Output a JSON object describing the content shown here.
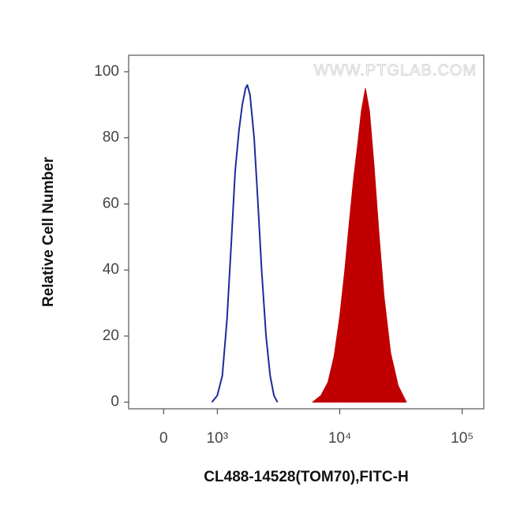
{
  "chart_data": {
    "type": "histogram-overlay",
    "watermark": "WWW.PTGLAB.COM",
    "x_label": "CL488-14528(TOM70),FITC-H",
    "y_label": "Relative Cell Number",
    "xscale": "biexponential",
    "xlim": [
      -650,
      150000
    ],
    "xticks": [
      0,
      {
        "value": 1000,
        "label": "10³"
      },
      {
        "value": 10000,
        "label": "10⁴"
      },
      {
        "value": 100000,
        "label": "10⁵"
      }
    ],
    "ylim": [
      -2,
      105
    ],
    "yticks": [
      0,
      20,
      40,
      60,
      80,
      100
    ],
    "series": [
      {
        "color": "#1f2a9c",
        "fill": false,
        "x": [
          900,
          1000,
          1100,
          1200,
          1300,
          1400,
          1500,
          1600,
          1700,
          1760,
          1850,
          2000,
          2150,
          2300,
          2500,
          2700,
          2900,
          3100
        ],
        "values": [
          0,
          2,
          8,
          25,
          48,
          70,
          82,
          90,
          95,
          96,
          93,
          80,
          60,
          40,
          20,
          8,
          2,
          0
        ]
      },
      {
        "color": "#c00000",
        "fill": true,
        "x": [
          6000,
          7000,
          8000,
          9000,
          10000,
          11000,
          12000,
          13000,
          14000,
          15000,
          16200,
          17500,
          19000,
          21000,
          23000,
          26000,
          30000,
          35000
        ],
        "values": [
          0,
          2,
          6,
          14,
          26,
          40,
          55,
          68,
          78,
          88,
          95,
          88,
          72,
          50,
          32,
          15,
          5,
          0
        ]
      }
    ]
  }
}
